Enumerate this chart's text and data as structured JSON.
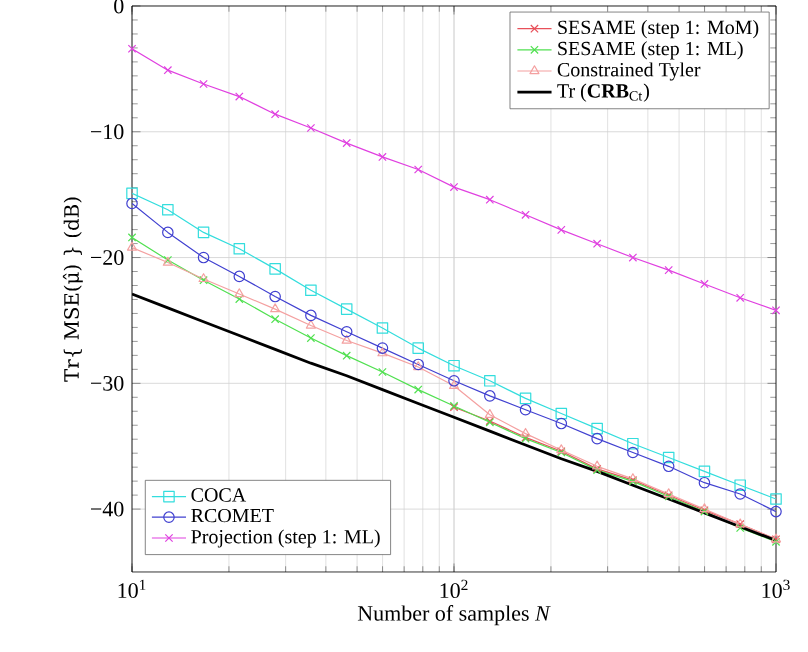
{
  "chart_data": {
    "type": "line",
    "xlabel": "Number of samples *N*",
    "ylabel": "Tr{ MSE(μ̂) } (dB)",
    "x": [
      10,
      12.92,
      16.68,
      21.54,
      27.83,
      35.94,
      46.42,
      59.95,
      77.43,
      100,
      129.2,
      166.8,
      215.4,
      278.3,
      359.4,
      464.2,
      599.5,
      774.3,
      1000
    ],
    "series": [
      {
        "name": "SESAME (step 1: MoM)",
        "color": "#e8505a",
        "marker": "cross",
        "values": [
          null,
          null,
          null,
          null,
          null,
          null,
          null,
          null,
          null,
          -31.9,
          -33.0,
          -34.3,
          -35.4,
          -36.8,
          -37.7,
          -38.9,
          -40.1,
          -41.2,
          -42.4
        ]
      },
      {
        "name": "SESAME (step 1: ML)",
        "color": "#50e050",
        "marker": "cross",
        "values": [
          -18.4,
          -20.2,
          -21.8,
          -23.3,
          -24.9,
          -26.4,
          -27.8,
          -29.1,
          -30.5,
          -31.8,
          -33.1,
          -34.4,
          -35.5,
          -36.9,
          -37.8,
          -39.0,
          -40.2,
          -41.5,
          -42.6
        ]
      },
      {
        "name": "Constrained Tyler",
        "color": "#f4a0a0",
        "marker": "triangle",
        "values": [
          -19.2,
          -20.4,
          -21.7,
          -22.9,
          -24.1,
          -25.4,
          -26.6,
          -27.6,
          -28.7,
          -30.2,
          -32.5,
          -34.0,
          -35.3,
          -36.6,
          -37.6,
          -38.8,
          -40.0,
          -41.2,
          -42.4
        ]
      },
      {
        "name": "Tr (**CRB**$_{Ct}$)",
        "color": "#000000",
        "marker": "none",
        "values": [
          -22.9,
          -24.0,
          -25.1,
          -26.2,
          -27.3,
          -28.4,
          -29.4,
          -30.5,
          -31.6,
          -32.7,
          -33.8,
          -34.9,
          -36.0,
          -37.0,
          -38.1,
          -39.2,
          -40.3,
          -41.4,
          -42.5
        ]
      },
      {
        "name": "COCA",
        "color": "#33dddd",
        "marker": "square",
        "values": [
          -14.9,
          -16.2,
          -18.0,
          -19.3,
          -20.9,
          -22.6,
          -24.1,
          -25.6,
          -27.2,
          -28.6,
          -29.8,
          -31.2,
          -32.4,
          -33.6,
          -34.8,
          -35.9,
          -37.0,
          -38.1,
          -39.2
        ]
      },
      {
        "name": "RCOMET",
        "color": "#4040d0",
        "marker": "circle",
        "values": [
          -15.7,
          -18.0,
          -20.0,
          -21.5,
          -23.1,
          -24.6,
          -25.9,
          -27.2,
          -28.5,
          -29.8,
          -31.0,
          -32.1,
          -33.2,
          -34.4,
          -35.5,
          -36.6,
          -37.9,
          -38.8,
          -40.2
        ]
      },
      {
        "name": "Projection (step 1: ML)",
        "color": "#e040e0",
        "marker": "cross",
        "values": [
          -3.4,
          -5.1,
          -6.2,
          -7.2,
          -8.6,
          -9.7,
          -10.9,
          -12.0,
          -13.0,
          -14.4,
          -15.4,
          -16.6,
          -17.8,
          -18.9,
          -20.0,
          -21.0,
          -22.1,
          -23.2,
          -24.2
        ]
      }
    ],
    "xlim": [
      10,
      1000
    ],
    "ylim": [
      -45,
      0
    ],
    "xticks": [
      {
        "value": 10,
        "label": "10$^{1}$"
      },
      {
        "value": 100,
        "label": "10$^{2}$"
      },
      {
        "value": 1000,
        "label": "10$^{3}$"
      }
    ],
    "yticks": [
      {
        "value": -40,
        "label": "−40"
      },
      {
        "value": -30,
        "label": "−30"
      },
      {
        "value": -20,
        "label": "−20"
      },
      {
        "value": -10,
        "label": "−10"
      },
      {
        "value": 0,
        "label": "0"
      }
    ],
    "log": "x",
    "grid": true,
    "legend": "top right",
    "line_style": "solid"
  }
}
